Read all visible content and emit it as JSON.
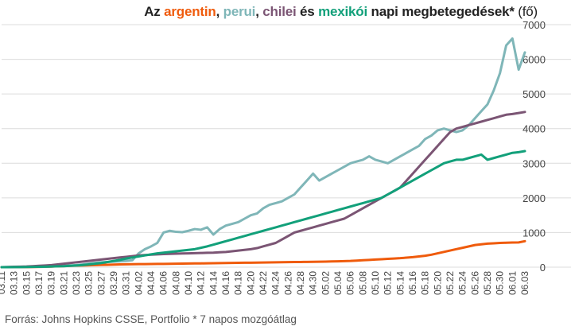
{
  "title": {
    "prefix": "Az ",
    "word_ar": "argentin",
    "sep1": ", ",
    "word_pe": "perui",
    "sep2": ", ",
    "word_ch": "chilei",
    "sep3": " és ",
    "word_mx": "mexikói",
    "suffix": " napi megbetegedések*",
    "unit": " (fő)"
  },
  "source": "Forrás: Johns Hopkins CSSE, Portfolio   * 7 napos mozgóátlag",
  "colors": {
    "argentina": "#ef5b0c",
    "peru": "#7fb6b8",
    "chile": "#7b5574",
    "mexico": "#12a07a"
  },
  "chart_data": {
    "type": "line",
    "title": "Az argentin, perui, chilei és mexikói napi megbetegedések* (fő)",
    "x_tick_labels": [
      "03.11",
      "03.13",
      "03.15",
      "03.17",
      "03.19",
      "03.21",
      "03.23",
      "03.25",
      "03.27",
      "03.29",
      "03.31",
      "04.02",
      "04.04",
      "04.06",
      "04.08",
      "04.10",
      "04.12",
      "04.14",
      "04.16",
      "04.18",
      "04.20",
      "04.22",
      "04.24",
      "04.26",
      "04.28",
      "04.30",
      "05.02",
      "05.04",
      "05.06",
      "05.08",
      "05.10",
      "05.12",
      "05.14",
      "05.16",
      "05.18",
      "05.20",
      "05.22",
      "05.24",
      "05.26",
      "05.28",
      "05.30",
      "06.01",
      "06.03"
    ],
    "y_ticks": [
      0,
      1000,
      2000,
      3000,
      4000,
      5000,
      6000,
      7000
    ],
    "ylim": [
      0,
      7000
    ],
    "y_axis_position": "right",
    "grid": "horizontal",
    "days": 85,
    "series": [
      {
        "name": "argentin",
        "color_key": "argentina",
        "values": [
          0,
          0,
          1,
          2,
          3,
          5,
          8,
          12,
          18,
          25,
          32,
          40,
          45,
          50,
          55,
          60,
          65,
          70,
          75,
          80,
          82,
          85,
          88,
          90,
          92,
          95,
          95,
          98,
          100,
          102,
          105,
          108,
          110,
          112,
          115,
          118,
          120,
          122,
          125,
          128,
          130,
          132,
          135,
          138,
          140,
          142,
          145,
          148,
          150,
          152,
          155,
          158,
          160,
          165,
          170,
          175,
          180,
          190,
          200,
          210,
          220,
          230,
          240,
          250,
          260,
          275,
          290,
          310,
          330,
          360,
          400,
          440,
          480,
          520,
          560,
          600,
          640,
          660,
          680,
          690,
          700,
          705,
          710,
          715,
          750
        ]
      },
      {
        "name": "perui",
        "color_key": "peru",
        "values": [
          0,
          2,
          4,
          6,
          8,
          10,
          12,
          15,
          20,
          30,
          40,
          50,
          60,
          80,
          100,
          120,
          140,
          150,
          160,
          170,
          180,
          200,
          400,
          520,
          600,
          700,
          1000,
          1050,
          1020,
          1010,
          1050,
          1100,
          1080,
          1150,
          940,
          1100,
          1200,
          1250,
          1300,
          1400,
          1500,
          1550,
          1700,
          1800,
          1850,
          1900,
          2000,
          2100,
          2300,
          2500,
          2700,
          2500,
          2600,
          2700,
          2800,
          2900,
          3000,
          3050,
          3100,
          3200,
          3100,
          3050,
          3000,
          3100,
          3200,
          3300,
          3400,
          3500,
          3700,
          3800,
          3950,
          4000,
          3950,
          3900,
          3950,
          4100,
          4300,
          4500,
          4700,
          5100,
          5600,
          6400,
          6600,
          5700,
          6200
        ]
      },
      {
        "name": "chilei",
        "color_key": "chile",
        "values": [
          0,
          5,
          10,
          15,
          20,
          30,
          40,
          50,
          60,
          80,
          100,
          120,
          140,
          160,
          180,
          200,
          220,
          240,
          260,
          280,
          300,
          320,
          340,
          350,
          360,
          370,
          380,
          385,
          390,
          395,
          400,
          405,
          410,
          415,
          420,
          430,
          440,
          460,
          480,
          500,
          520,
          550,
          600,
          650,
          700,
          800,
          900,
          1000,
          1050,
          1100,
          1150,
          1200,
          1250,
          1300,
          1350,
          1400,
          1500,
          1600,
          1700,
          1800,
          1900,
          2000,
          2100,
          2200,
          2300,
          2500,
          2700,
          2900,
          3100,
          3300,
          3500,
          3700,
          3900,
          4000,
          4050,
          4100,
          4150,
          4200,
          4250,
          4300,
          4350,
          4400,
          4420,
          4450,
          4480
        ]
      },
      {
        "name": "mexikói",
        "color_key": "mexico",
        "values": [
          0,
          1,
          2,
          4,
          6,
          8,
          10,
          15,
          20,
          25,
          30,
          40,
          50,
          60,
          80,
          100,
          120,
          150,
          180,
          210,
          250,
          280,
          310,
          340,
          370,
          400,
          420,
          440,
          460,
          480,
          500,
          520,
          560,
          600,
          650,
          700,
          750,
          800,
          850,
          900,
          950,
          1000,
          1050,
          1100,
          1150,
          1200,
          1250,
          1300,
          1350,
          1400,
          1450,
          1500,
          1550,
          1600,
          1650,
          1700,
          1750,
          1800,
          1850,
          1900,
          1950,
          2000,
          2100,
          2200,
          2300,
          2400,
          2500,
          2600,
          2700,
          2800,
          2900,
          3000,
          3050,
          3100,
          3100,
          3150,
          3200,
          3250,
          3100,
          3150,
          3200,
          3250,
          3300,
          3320,
          3350
        ]
      }
    ]
  }
}
